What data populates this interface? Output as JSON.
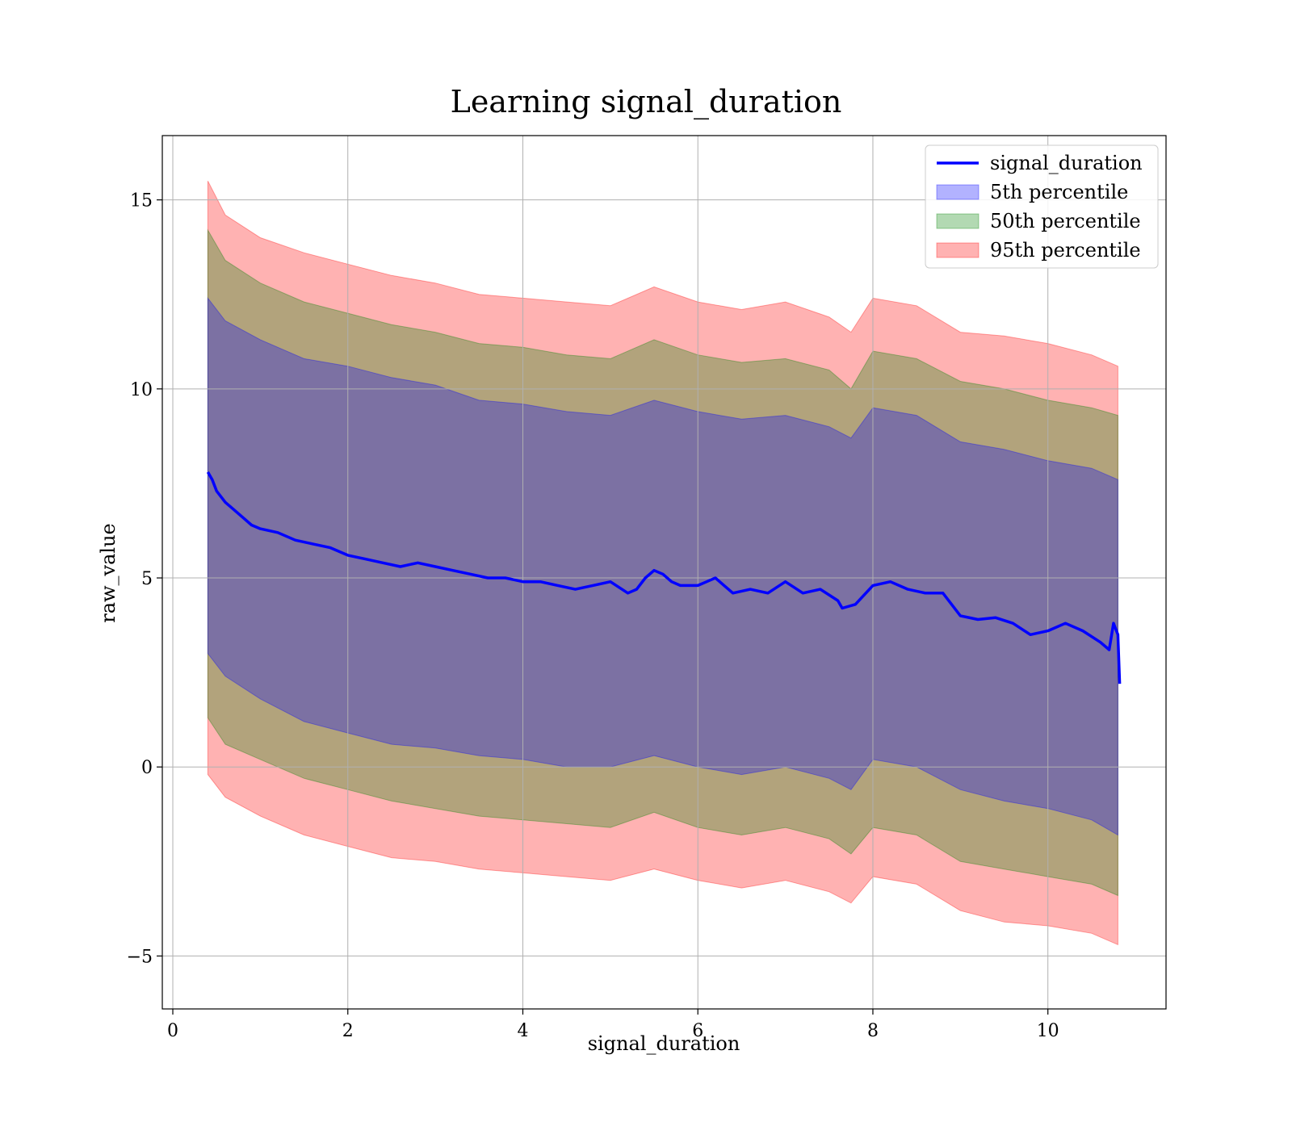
{
  "chart_data": {
    "type": "area",
    "title": "Learning signal_duration",
    "xlabel": "signal_duration",
    "ylabel": "raw_value",
    "xlim": [
      -0.12,
      11.35
    ],
    "ylim": [
      -6.4,
      16.7
    ],
    "x_ticks": [
      0,
      2,
      4,
      6,
      8,
      10
    ],
    "x_tick_labels": [
      "0",
      "2",
      "4",
      "6",
      "8",
      "10"
    ],
    "y_ticks": [
      -5,
      0,
      5,
      10,
      15
    ],
    "y_tick_labels": [
      "−5",
      "0",
      "5",
      "10",
      "15"
    ],
    "grid": true,
    "legend_position": "top-right",
    "line": {
      "name": "signal_duration",
      "color": "#0000ff",
      "x": [
        0.4,
        0.45,
        0.5,
        0.6,
        0.7,
        0.8,
        0.9,
        1.0,
        1.2,
        1.4,
        1.6,
        1.8,
        2.0,
        2.2,
        2.4,
        2.6,
        2.8,
        3.0,
        3.2,
        3.4,
        3.6,
        3.8,
        4.0,
        4.2,
        4.4,
        4.6,
        4.8,
        5.0,
        5.2,
        5.3,
        5.4,
        5.5,
        5.6,
        5.7,
        5.8,
        6.0,
        6.1,
        6.2,
        6.3,
        6.4,
        6.6,
        6.8,
        7.0,
        7.2,
        7.4,
        7.6,
        7.65,
        7.8,
        8.0,
        8.2,
        8.4,
        8.6,
        8.8,
        9.0,
        9.2,
        9.4,
        9.6,
        9.8,
        10.0,
        10.2,
        10.4,
        10.6,
        10.7,
        10.75,
        10.8,
        10.82
      ],
      "y": [
        7.8,
        7.6,
        7.3,
        7.0,
        6.8,
        6.6,
        6.4,
        6.3,
        6.2,
        6.0,
        5.9,
        5.8,
        5.6,
        5.5,
        5.4,
        5.3,
        5.4,
        5.3,
        5.2,
        5.1,
        5.0,
        5.0,
        4.9,
        4.9,
        4.8,
        4.7,
        4.8,
        4.9,
        4.6,
        4.7,
        5.0,
        5.2,
        5.1,
        4.9,
        4.8,
        4.8,
        4.9,
        5.0,
        4.8,
        4.6,
        4.7,
        4.6,
        4.9,
        4.6,
        4.7,
        4.4,
        4.2,
        4.3,
        4.8,
        4.9,
        4.7,
        4.6,
        4.6,
        4.0,
        3.9,
        3.95,
        3.8,
        3.5,
        3.6,
        3.8,
        3.6,
        3.3,
        3.1,
        3.8,
        3.5,
        2.2
      ]
    },
    "series": [
      {
        "name": "5th percentile",
        "color": "#0000ff",
        "x": [
          0.4,
          0.6,
          1.0,
          1.5,
          2.0,
          2.5,
          3.0,
          3.5,
          4.0,
          4.5,
          5.0,
          5.5,
          6.0,
          6.5,
          7.0,
          7.5,
          7.75,
          8.0,
          8.5,
          9.0,
          9.5,
          10.0,
          10.5,
          10.8
        ],
        "upper": [
          12.4,
          11.8,
          11.3,
          10.8,
          10.6,
          10.3,
          10.1,
          9.7,
          9.6,
          9.4,
          9.3,
          9.7,
          9.4,
          9.2,
          9.3,
          9.0,
          8.7,
          9.5,
          9.3,
          8.6,
          8.4,
          8.1,
          7.9,
          7.6
        ],
        "lower": [
          3.0,
          2.4,
          1.8,
          1.2,
          0.9,
          0.6,
          0.5,
          0.3,
          0.2,
          0.0,
          0.0,
          0.3,
          0.0,
          -0.2,
          0.0,
          -0.3,
          -0.6,
          0.2,
          0.0,
          -0.6,
          -0.9,
          -1.1,
          -1.4,
          -1.8
        ]
      },
      {
        "name": "50th percentile",
        "color": "#008000",
        "x": [
          0.4,
          0.6,
          1.0,
          1.5,
          2.0,
          2.5,
          3.0,
          3.5,
          4.0,
          4.5,
          5.0,
          5.5,
          6.0,
          6.5,
          7.0,
          7.5,
          7.75,
          8.0,
          8.5,
          9.0,
          9.5,
          10.0,
          10.5,
          10.8
        ],
        "upper": [
          14.2,
          13.4,
          12.8,
          12.3,
          12.0,
          11.7,
          11.5,
          11.2,
          11.1,
          10.9,
          10.8,
          11.3,
          10.9,
          10.7,
          10.8,
          10.5,
          10.0,
          11.0,
          10.8,
          10.2,
          10.0,
          9.7,
          9.5,
          9.3
        ],
        "lower": [
          1.3,
          0.6,
          0.2,
          -0.3,
          -0.6,
          -0.9,
          -1.1,
          -1.3,
          -1.4,
          -1.5,
          -1.6,
          -1.2,
          -1.6,
          -1.8,
          -1.6,
          -1.9,
          -2.3,
          -1.6,
          -1.8,
          -2.5,
          -2.7,
          -2.9,
          -3.1,
          -3.4
        ]
      },
      {
        "name": "95th percentile",
        "color": "#ff0000",
        "x": [
          0.4,
          0.6,
          1.0,
          1.5,
          2.0,
          2.5,
          3.0,
          3.5,
          4.0,
          4.5,
          5.0,
          5.5,
          6.0,
          6.5,
          7.0,
          7.5,
          7.75,
          8.0,
          8.5,
          9.0,
          9.5,
          10.0,
          10.5,
          10.8
        ],
        "upper": [
          15.5,
          14.6,
          14.0,
          13.6,
          13.3,
          13.0,
          12.8,
          12.5,
          12.4,
          12.3,
          12.2,
          12.7,
          12.3,
          12.1,
          12.3,
          11.9,
          11.5,
          12.4,
          12.2,
          11.5,
          11.4,
          11.2,
          10.9,
          10.6
        ],
        "lower": [
          -0.2,
          -0.8,
          -1.3,
          -1.8,
          -2.1,
          -2.4,
          -2.5,
          -2.7,
          -2.8,
          -2.9,
          -3.0,
          -2.7,
          -3.0,
          -3.2,
          -3.0,
          -3.3,
          -3.6,
          -2.9,
          -3.1,
          -3.8,
          -4.1,
          -4.2,
          -4.4,
          -4.7
        ]
      }
    ]
  }
}
